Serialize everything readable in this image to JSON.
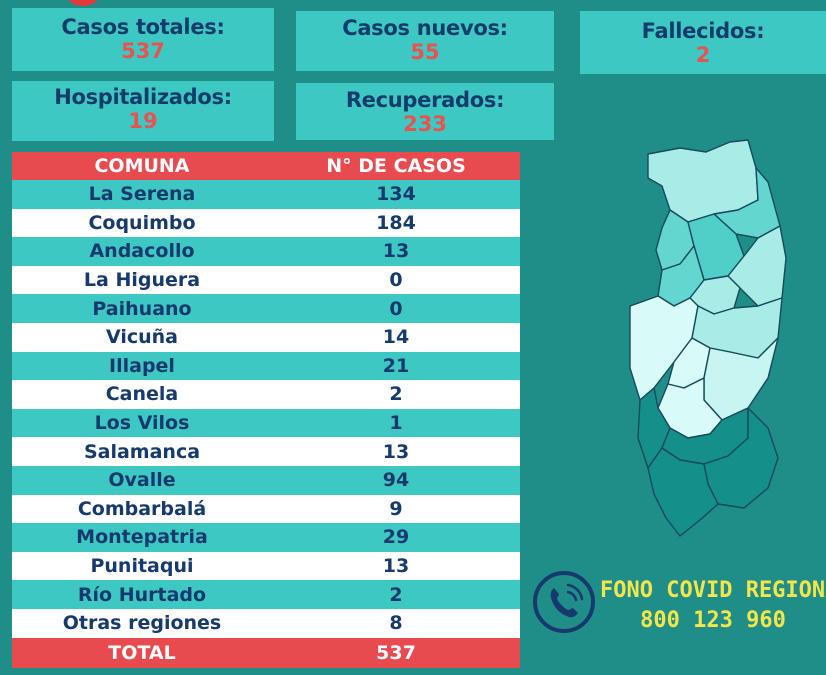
{
  "stats": {
    "total": {
      "label": "Casos totales:",
      "value": "537"
    },
    "new": {
      "label": "Casos nuevos:",
      "value": "55"
    },
    "deaths": {
      "label": "Fallecidos:",
      "value": "2"
    },
    "hosp": {
      "label": "Hospitalizados:",
      "value": "19"
    },
    "recov": {
      "label": "Recuperados:",
      "value": "233"
    }
  },
  "table": {
    "header": {
      "commune": "COMUNA",
      "cases": "N° DE CASOS"
    },
    "rows": [
      {
        "commune": "La Serena",
        "cases": "134"
      },
      {
        "commune": "Coquimbo",
        "cases": "184"
      },
      {
        "commune": "Andacollo",
        "cases": "13"
      },
      {
        "commune": "La Higuera",
        "cases": "0"
      },
      {
        "commune": "Paihuano",
        "cases": "0"
      },
      {
        "commune": "Vicuña",
        "cases": "14"
      },
      {
        "commune": "Illapel",
        "cases": "21"
      },
      {
        "commune": "Canela",
        "cases": "2"
      },
      {
        "commune": "Los Vilos",
        "cases": "1"
      },
      {
        "commune": "Salamanca",
        "cases": "13"
      },
      {
        "commune": "Ovalle",
        "cases": "94"
      },
      {
        "commune": "Combarbalá",
        "cases": "9"
      },
      {
        "commune": "Montepatria",
        "cases": "29"
      },
      {
        "commune": "Punitaqui",
        "cases": "13"
      },
      {
        "commune": "Río Hurtado",
        "cases": "2"
      },
      {
        "commune": "Otras regiones",
        "cases": "8"
      }
    ],
    "footer": {
      "commune": "TOTAL",
      "cases": "537"
    }
  },
  "hotline": {
    "title": "FONO COVID REGIONAL",
    "number": "800 123 960"
  },
  "colors": {
    "background": "#1f8d88",
    "panel": "#3ec8c4",
    "accent_red": "#e84b4f",
    "text_navy": "#173a6e",
    "hotline_yellow": "#f4e64a"
  },
  "icons": {
    "phone": "phone-icon",
    "map": "region-map"
  }
}
